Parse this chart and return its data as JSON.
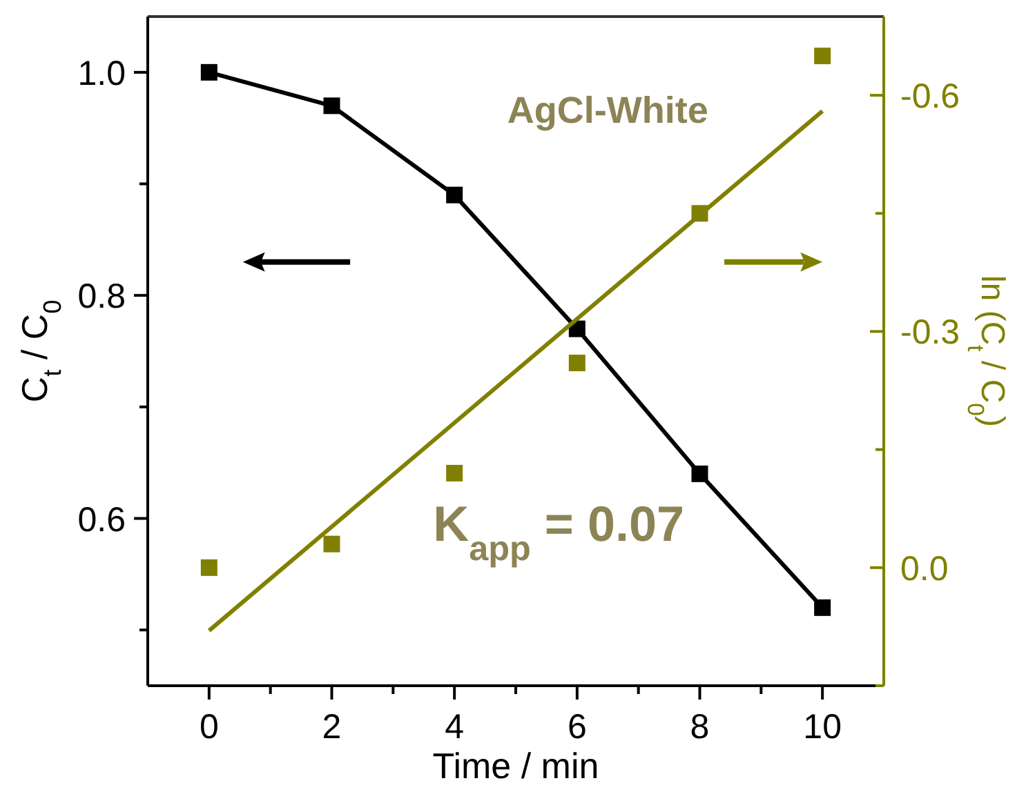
{
  "chart_data": {
    "type": "line",
    "xlabel": "Time / min",
    "ylabel": "C$_{t}$ / C$_{0}$",
    "y2label": "ln (C$_{t}$ / C$_{0}$)",
    "x": [
      0,
      2,
      4,
      6,
      8,
      10
    ],
    "xlim": [
      -1,
      11
    ],
    "xticks": [
      0,
      2,
      4,
      6,
      8,
      10,
      {
        "value": 1,
        "label": null
      },
      {
        "value": 3,
        "label": null
      },
      {
        "value": 5,
        "label": null
      },
      {
        "value": 7,
        "label": null
      },
      {
        "value": 9,
        "label": null
      }
    ],
    "ylim": [
      0.45,
      1.05
    ],
    "yticks": [
      0.6,
      0.8,
      {
        "value": 1,
        "label": "1.0"
      },
      {
        "value": 0.5,
        "label": null
      },
      {
        "value": 0.7,
        "label": null
      },
      {
        "value": 0.9,
        "label": null
      }
    ],
    "y2lim": [
      0.15,
      -0.7
    ],
    "y2ticks": [
      -0.6,
      -0.3,
      {
        "value": 0,
        "label": "0.0"
      },
      {
        "value": -0.45,
        "label": null
      },
      {
        "value": -0.15,
        "label": null
      },
      {
        "value": 0.15,
        "label": null
      }
    ],
    "series": [
      {
        "color": "#000000",
        "marker": "square",
        "values": [
          1.0,
          0.97,
          0.89,
          0.77,
          0.64,
          0.52
        ]
      },
      {
        "type": "scatter",
        "axis": "y2",
        "color": "#808000",
        "marker": "square",
        "values": [
          0.0,
          -0.03,
          -0.12,
          -0.26,
          -0.45,
          -0.65
        ]
      },
      {
        "type": "line",
        "axis": "y2",
        "color": "#808000",
        "marker": "none",
        "x": [
          0,
          10
        ],
        "values": [
          0.08,
          -0.58
        ]
      }
    ],
    "annotations": [
      "AgCl-White",
      "K$_{app}$ = 0.07"
    ],
    "grid": false
  }
}
